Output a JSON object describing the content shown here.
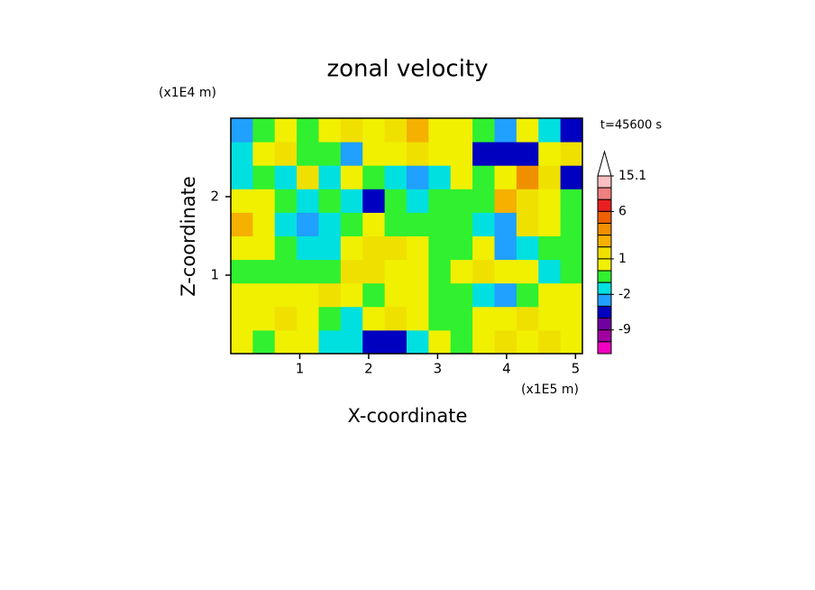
{
  "chart_data": {
    "type": "contour",
    "title": "zonal velocity",
    "x_label": "X-coordinate",
    "y_label": "Z-coordinate",
    "x_unit": "(x1E5 m)",
    "y_unit": "(x1E4 m)",
    "annotation": "t=45600 s",
    "xlim": [
      0,
      5.1
    ],
    "ylim": [
      0,
      3
    ],
    "xticks": [
      1,
      2,
      3,
      4,
      5
    ],
    "yticks": [
      1,
      2
    ],
    "z": [
      [
        0.5,
        -0.5,
        1,
        0.5,
        -1,
        -1.5,
        -3,
        -4,
        -1,
        0.5,
        -0.5,
        0.5,
        2,
        1,
        2,
        0.5
      ],
      [
        1,
        1,
        2,
        0.5,
        -0.5,
        -1,
        1,
        2,
        0.5,
        -0.5,
        -0.5,
        0.5,
        1,
        2,
        0.5,
        0.5
      ],
      [
        0.5,
        1,
        1,
        0.5,
        2,
        0.5,
        -0.5,
        1,
        0.5,
        -0.5,
        -0.5,
        -1.5,
        -2,
        0,
        0.5,
        1
      ],
      [
        -0.5,
        0,
        -0.5,
        0,
        -0.5,
        1.5,
        2,
        1,
        0.5,
        -0.5,
        0.5,
        1.5,
        0.5,
        0.5,
        -1.5,
        -0.5
      ],
      [
        1,
        0.5,
        -0.5,
        -1.5,
        -1,
        1,
        1.5,
        2,
        0.5,
        0,
        -0.5,
        0.5,
        -2,
        -1,
        -0.5,
        0
      ],
      [
        2.5,
        1,
        -1,
        -2,
        -1.5,
        -0.5,
        0.5,
        -0.5,
        -0.5,
        -0.5,
        -0.5,
        -1.5,
        -2,
        2,
        0.5,
        0
      ],
      [
        0.5,
        1,
        -0.5,
        -1.5,
        -0.5,
        -1,
        -3,
        -0.5,
        -1,
        -0.5,
        -0.5,
        0,
        3,
        1.5,
        0.5,
        -0.5
      ],
      [
        -1,
        0,
        -1,
        2,
        -1,
        0.5,
        -0.5,
        -1.5,
        -2,
        -1,
        0.5,
        -0.5,
        1,
        4,
        2,
        -3
      ],
      [
        -1,
        0.5,
        2,
        0,
        -0.5,
        -2,
        0.5,
        1,
        2,
        1,
        0.5,
        -3,
        -5,
        -4,
        0.5,
        2
      ],
      [
        -2,
        -0.5,
        0.5,
        0,
        0.5,
        1.5,
        0.5,
        2,
        2.5,
        1,
        0.5,
        -0.5,
        -2,
        0.5,
        -1,
        -4
      ]
    ],
    "colorbar": {
      "levels": [
        15.1,
        12,
        9,
        6,
        4,
        3,
        2,
        1,
        0,
        -1,
        -2,
        -3,
        -6,
        -9,
        -12,
        -15
      ],
      "colors": [
        "#f8c0c0",
        "#f08080",
        "#e82020",
        "#f06000",
        "#f09000",
        "#f5b000",
        "#f0e000",
        "#f0f000",
        "#30f030",
        "#00e0e0",
        "#20a0ff",
        "#0000c0",
        "#7000a0",
        "#a000a0",
        "#f000c0"
      ],
      "ticks": [
        15.1,
        6,
        1,
        -2,
        -9
      ]
    }
  }
}
